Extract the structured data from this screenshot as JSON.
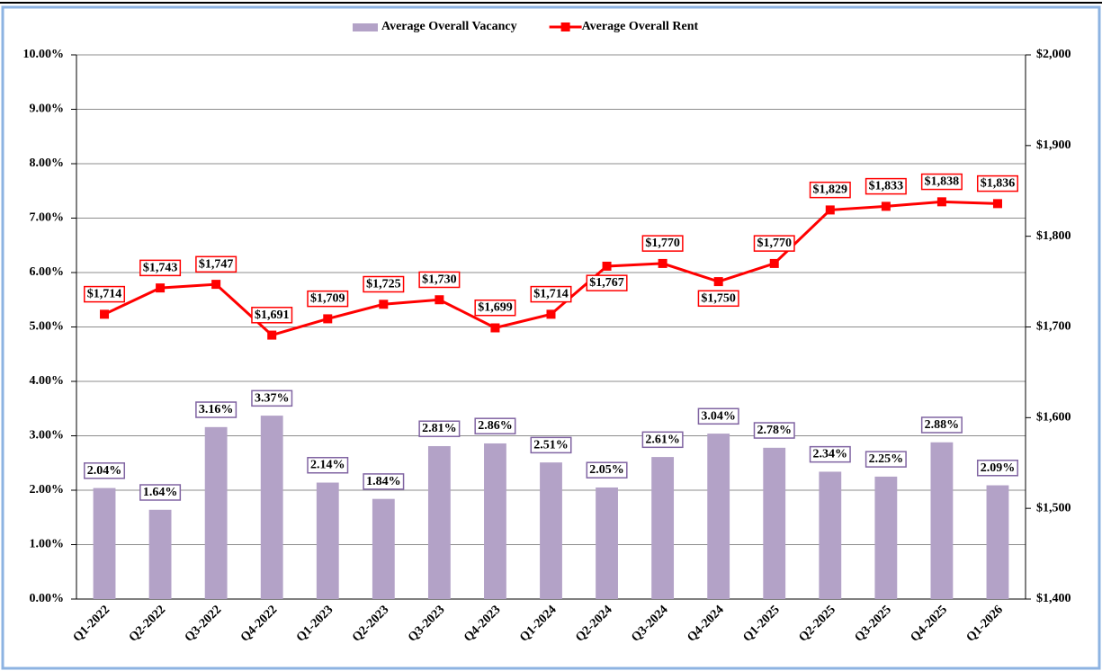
{
  "chart_data": {
    "type": "combo",
    "categories": [
      "Q1-2022",
      "Q2-2022",
      "Q3-2022",
      "Q4-2022",
      "Q1-2023",
      "Q2-2023",
      "Q3-2023",
      "Q4-2023",
      "Q1-2024",
      "Q2-2024",
      "Q3-2024",
      "Q4-2024",
      "Q1-2025",
      "Q2-2025",
      "Q3-2025",
      "Q4-2025",
      "Q1-2026"
    ],
    "series": [
      {
        "name": "Average Overall Vacancy",
        "type": "bar",
        "color": "#b3a2c7",
        "values": [
          2.04,
          1.64,
          3.16,
          3.37,
          2.14,
          1.84,
          2.81,
          2.86,
          2.51,
          2.05,
          2.61,
          3.04,
          2.78,
          2.34,
          2.25,
          2.88,
          2.09
        ],
        "value_labels": [
          "2.04%",
          "1.64%",
          "3.16%",
          "3.37%",
          "2.14%",
          "1.84%",
          "2.81%",
          "2.86%",
          "2.51%",
          "2.05%",
          "2.61%",
          "3.04%",
          "2.78%",
          "2.34%",
          "2.25%",
          "2.88%",
          "2.09%"
        ]
      },
      {
        "name": "Average Overall Rent",
        "type": "line",
        "axis": "y2",
        "color": "#ff0000",
        "values": [
          1714,
          1743,
          1747,
          1691,
          1709,
          1725,
          1730,
          1699,
          1714,
          1767,
          1770,
          1750,
          1770,
          1829,
          1833,
          1838,
          1836
        ],
        "value_labels": [
          "$1,714",
          "$1,743",
          "$1,747",
          "$1,691",
          "$1,709",
          "$1,725",
          "$1,730",
          "$1,699",
          "$1,714",
          "$1,767",
          "$1,770",
          "$1,750",
          "$1,770",
          "$1,829",
          "$1,833",
          "$1,838",
          "$1,836"
        ]
      }
    ],
    "ylim": [
      0,
      10
    ],
    "yticks": [
      {
        "value": 0,
        "label": "0.00%"
      },
      {
        "value": 1,
        "label": "1.00%"
      },
      {
        "value": 2,
        "label": "2.00%"
      },
      {
        "value": 3,
        "label": "3.00%"
      },
      {
        "value": 4,
        "label": "4.00%"
      },
      {
        "value": 5,
        "label": "5.00%"
      },
      {
        "value": 6,
        "label": "6.00%"
      },
      {
        "value": 7,
        "label": "7.00%"
      },
      {
        "value": 8,
        "label": "8.00%"
      },
      {
        "value": 9,
        "label": "9.00%"
      },
      {
        "value": 10,
        "label": "10.00%"
      }
    ],
    "y2lim": [
      1400,
      2000
    ],
    "y2ticks": [
      {
        "value": 1400,
        "label": "$1,400"
      },
      {
        "value": 1500,
        "label": "$1,500"
      },
      {
        "value": 1600,
        "label": "$1,600"
      },
      {
        "value": 1700,
        "label": "$1,700"
      },
      {
        "value": 1800,
        "label": "$1,800"
      },
      {
        "value": 1900,
        "label": "$1,900"
      },
      {
        "value": 2000,
        "label": "$2,000"
      }
    ],
    "grid": true,
    "legend": "top"
  }
}
